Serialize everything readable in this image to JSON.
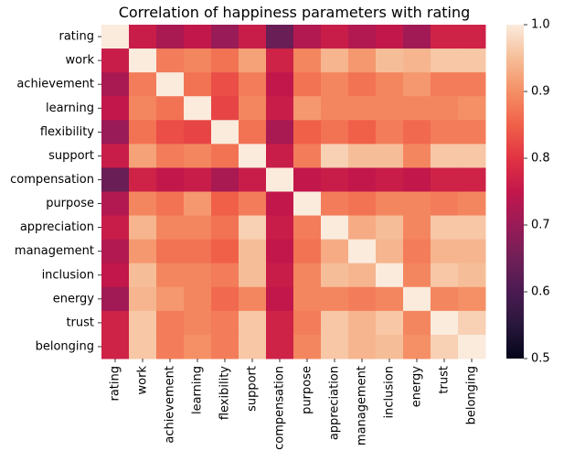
{
  "chart_data": {
    "type": "heatmap",
    "title": "Correlation of happiness parameters with rating",
    "xlabel": "",
    "ylabel": "",
    "variables": [
      "rating",
      "work",
      "achievement",
      "learning",
      "flexibility",
      "support",
      "compensation",
      "purpose",
      "appreciation",
      "management",
      "inclusion",
      "energy",
      "trust",
      "belonging"
    ],
    "matrix": [
      [
        1.0,
        0.76,
        0.72,
        0.75,
        0.7,
        0.76,
        0.64,
        0.73,
        0.76,
        0.73,
        0.75,
        0.71,
        0.77,
        0.77
      ],
      [
        0.76,
        1.0,
        0.88,
        0.89,
        0.87,
        0.92,
        0.77,
        0.89,
        0.94,
        0.91,
        0.95,
        0.94,
        0.96,
        0.96
      ],
      [
        0.72,
        0.88,
        1.0,
        0.87,
        0.83,
        0.88,
        0.75,
        0.87,
        0.89,
        0.87,
        0.89,
        0.91,
        0.88,
        0.88
      ],
      [
        0.75,
        0.89,
        0.87,
        1.0,
        0.82,
        0.89,
        0.76,
        0.91,
        0.89,
        0.89,
        0.89,
        0.89,
        0.89,
        0.9
      ],
      [
        0.7,
        0.87,
        0.83,
        0.82,
        1.0,
        0.87,
        0.72,
        0.85,
        0.87,
        0.85,
        0.88,
        0.86,
        0.88,
        0.88
      ],
      [
        0.76,
        0.92,
        0.88,
        0.89,
        0.87,
        1.0,
        0.76,
        0.88,
        0.97,
        0.95,
        0.95,
        0.89,
        0.96,
        0.96
      ],
      [
        0.64,
        0.77,
        0.75,
        0.76,
        0.72,
        0.76,
        1.0,
        0.75,
        0.76,
        0.75,
        0.76,
        0.75,
        0.77,
        0.77
      ],
      [
        0.73,
        0.89,
        0.87,
        0.91,
        0.85,
        0.88,
        0.75,
        1.0,
        0.88,
        0.87,
        0.89,
        0.89,
        0.88,
        0.89
      ],
      [
        0.76,
        0.94,
        0.89,
        0.89,
        0.87,
        0.97,
        0.76,
        0.88,
        1.0,
        0.93,
        0.95,
        0.89,
        0.96,
        0.96
      ],
      [
        0.73,
        0.91,
        0.87,
        0.87,
        0.85,
        0.95,
        0.75,
        0.87,
        0.93,
        1.0,
        0.94,
        0.88,
        0.94,
        0.94
      ],
      [
        0.75,
        0.95,
        0.89,
        0.89,
        0.88,
        0.95,
        0.76,
        0.89,
        0.95,
        0.94,
        1.0,
        0.89,
        0.96,
        0.95
      ],
      [
        0.71,
        0.94,
        0.91,
        0.89,
        0.86,
        0.89,
        0.75,
        0.89,
        0.89,
        0.88,
        0.89,
        1.0,
        0.89,
        0.9
      ],
      [
        0.77,
        0.96,
        0.88,
        0.89,
        0.88,
        0.96,
        0.77,
        0.88,
        0.96,
        0.94,
        0.96,
        0.89,
        1.0,
        0.97
      ],
      [
        0.77,
        0.96,
        0.88,
        0.9,
        0.88,
        0.96,
        0.77,
        0.89,
        0.96,
        0.94,
        0.95,
        0.9,
        0.97,
        1.0
      ]
    ],
    "vmin": 0.5,
    "vmax": 1.0,
    "colorbar_ticks": [
      "0.5",
      "0.6",
      "0.7",
      "0.8",
      "0.9",
      "1.0"
    ],
    "colormap": "rocket",
    "grid": false,
    "legend": "colorbar-right"
  }
}
